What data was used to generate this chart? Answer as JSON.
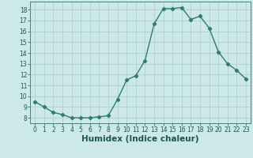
{
  "x": [
    0,
    1,
    2,
    3,
    4,
    5,
    6,
    7,
    8,
    9,
    10,
    11,
    12,
    13,
    14,
    15,
    16,
    17,
    18,
    19,
    20,
    21,
    22,
    23
  ],
  "y": [
    9.5,
    9.0,
    8.5,
    8.3,
    8.0,
    8.0,
    8.0,
    8.1,
    8.2,
    9.7,
    11.5,
    11.9,
    13.3,
    16.7,
    18.1,
    18.1,
    18.2,
    17.1,
    17.4,
    16.3,
    14.1,
    13.0,
    12.4,
    11.6
  ],
  "line_color": "#2e7d6e",
  "marker": "D",
  "marker_size": 2.2,
  "bg_color": "#cce8e8",
  "grid_color": "#aacccc",
  "xlabel": "Humidex (Indice chaleur)",
  "ylabel": "",
  "xlim": [
    -0.5,
    23.5
  ],
  "ylim": [
    7.5,
    18.75
  ],
  "yticks": [
    8,
    9,
    10,
    11,
    12,
    13,
    14,
    15,
    16,
    17,
    18
  ],
  "xticks": [
    0,
    1,
    2,
    3,
    4,
    5,
    6,
    7,
    8,
    9,
    10,
    11,
    12,
    13,
    14,
    15,
    16,
    17,
    18,
    19,
    20,
    21,
    22,
    23
  ],
  "tick_label_fontsize": 5.5,
  "xlabel_fontsize": 7.5,
  "tick_color": "#1a5555",
  "border_color": "#4a8080",
  "linewidth": 1.0
}
